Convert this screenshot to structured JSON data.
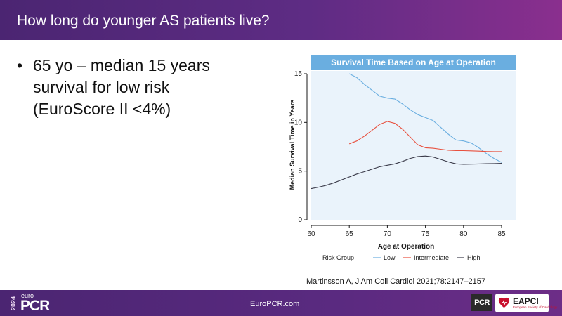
{
  "header": {
    "title": "How long do younger AS patients live?"
  },
  "bullet": {
    "dot": "•",
    "text": "65 yo – median 15 years survival for low risk (EuroScore II <4%)"
  },
  "chart_data": {
    "type": "line",
    "title": "Survival Time Based on Age at Operation",
    "xlabel": "Age at Operation",
    "ylabel": "Median Survival Time in Years",
    "xlim": [
      60,
      85
    ],
    "ylim": [
      0,
      15
    ],
    "xticks": [
      60,
      65,
      70,
      75,
      80,
      85
    ],
    "yticks": [
      0,
      5,
      10,
      15
    ],
    "legend_title": "Risk Group",
    "legend_position": "bottom",
    "grid": false,
    "series": [
      {
        "name": "Low",
        "color": "#6aaee0",
        "points": [
          [
            65,
            15.0
          ],
          [
            66,
            14.6
          ],
          [
            67,
            13.9
          ],
          [
            68,
            13.3
          ],
          [
            69,
            12.7
          ],
          [
            70,
            12.5
          ],
          [
            71,
            12.4
          ],
          [
            72,
            11.9
          ],
          [
            73,
            11.3
          ],
          [
            74,
            10.8
          ],
          [
            75,
            10.5
          ],
          [
            76,
            10.2
          ],
          [
            77,
            9.5
          ],
          [
            78,
            8.8
          ],
          [
            79,
            8.2
          ],
          [
            80,
            8.1
          ],
          [
            81,
            7.9
          ],
          [
            82,
            7.4
          ],
          [
            83,
            6.8
          ],
          [
            84,
            6.3
          ],
          [
            85,
            5.9
          ]
        ]
      },
      {
        "name": "Intermediate",
        "color": "#e8513f",
        "points": [
          [
            65,
            7.8
          ],
          [
            66,
            8.1
          ],
          [
            67,
            8.6
          ],
          [
            68,
            9.2
          ],
          [
            69,
            9.8
          ],
          [
            70,
            10.1
          ],
          [
            71,
            9.9
          ],
          [
            72,
            9.3
          ],
          [
            73,
            8.5
          ],
          [
            74,
            7.7
          ],
          [
            75,
            7.4
          ],
          [
            76,
            7.35
          ],
          [
            77,
            7.25
          ],
          [
            78,
            7.15
          ],
          [
            79,
            7.1
          ],
          [
            80,
            7.1
          ],
          [
            81,
            7.08
          ],
          [
            82,
            7.05
          ],
          [
            83,
            7.02
          ],
          [
            84,
            7.0
          ],
          [
            85,
            7.0
          ]
        ]
      },
      {
        "name": "High",
        "color": "#3b3b4a",
        "points": [
          [
            60,
            3.2
          ],
          [
            61,
            3.35
          ],
          [
            62,
            3.55
          ],
          [
            63,
            3.8
          ],
          [
            64,
            4.1
          ],
          [
            65,
            4.4
          ],
          [
            66,
            4.7
          ],
          [
            67,
            4.95
          ],
          [
            68,
            5.2
          ],
          [
            69,
            5.45
          ],
          [
            70,
            5.6
          ],
          [
            71,
            5.75
          ],
          [
            72,
            6.0
          ],
          [
            73,
            6.3
          ],
          [
            74,
            6.5
          ],
          [
            75,
            6.55
          ],
          [
            76,
            6.45
          ],
          [
            77,
            6.2
          ],
          [
            78,
            5.95
          ],
          [
            79,
            5.75
          ],
          [
            80,
            5.7
          ],
          [
            81,
            5.72
          ],
          [
            82,
            5.74
          ],
          [
            83,
            5.76
          ],
          [
            84,
            5.78
          ],
          [
            85,
            5.8
          ]
        ]
      }
    ]
  },
  "citation": "Martinsson A, J Am Coll Cardiol 2021;78:2147–2157",
  "footer": {
    "year": "2024",
    "logo_small": "euro",
    "logo_big": "PCR",
    "url": "EuroPCR.com",
    "pcr_badge": "PCR",
    "eapci_name": "EAPCI",
    "eapci_sub": "European Society of Cardiology"
  }
}
